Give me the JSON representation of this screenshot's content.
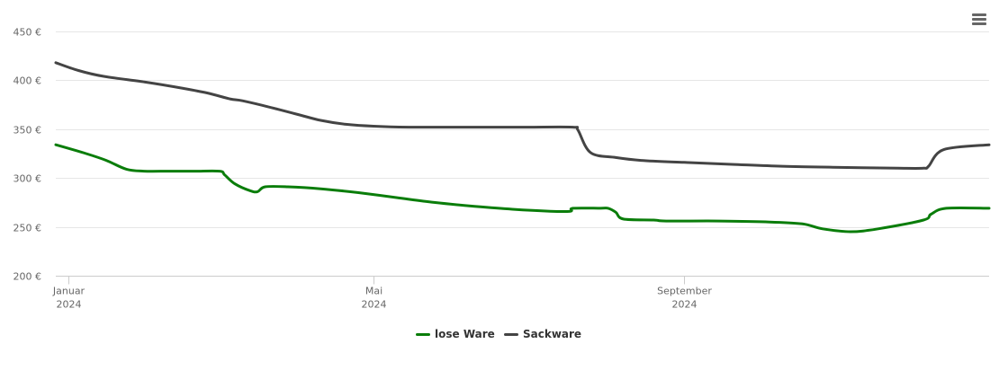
{
  "chart_data": {
    "type": "line",
    "title": "",
    "xlabel": "",
    "ylabel": "",
    "ylim": [
      200,
      450
    ],
    "y_ticks": [
      {
        "value": 200,
        "label": "200 €"
      },
      {
        "value": 250,
        "label": "250 €"
      },
      {
        "value": 300,
        "label": "300 €"
      },
      {
        "value": 350,
        "label": "350 €"
      },
      {
        "value": 400,
        "label": "400 €"
      },
      {
        "value": 450,
        "label": "450 €"
      }
    ],
    "xlim": [
      "2023-12-27",
      "2024-12-31"
    ],
    "x_ticks": [
      {
        "date": "2024-01-01",
        "label": "Januar",
        "year": "2024"
      },
      {
        "date": "2024-05-01",
        "label": "Mai",
        "year": "2024"
      },
      {
        "date": "2024-09-01",
        "label": "September",
        "year": "2024"
      }
    ],
    "grid": true,
    "legend_position": "bottom-center",
    "series": [
      {
        "name": "lose Ware",
        "color": "#0a7d0a",
        "points": [
          [
            "2023-12-27",
            334
          ],
          [
            "2024-01-08",
            325
          ],
          [
            "2024-01-16",
            318
          ],
          [
            "2024-01-24",
            309
          ],
          [
            "2024-01-31",
            307
          ],
          [
            "2024-02-10",
            307
          ],
          [
            "2024-02-20",
            307
          ],
          [
            "2024-03-01",
            307
          ],
          [
            "2024-03-03",
            303
          ],
          [
            "2024-03-07",
            294
          ],
          [
            "2024-03-13",
            287
          ],
          [
            "2024-03-16",
            286
          ],
          [
            "2024-03-19",
            291
          ],
          [
            "2024-03-28",
            291
          ],
          [
            "2024-04-10",
            289
          ],
          [
            "2024-04-25",
            285
          ],
          [
            "2024-05-10",
            280
          ],
          [
            "2024-05-25",
            275
          ],
          [
            "2024-06-10",
            271
          ],
          [
            "2024-06-25",
            268
          ],
          [
            "2024-07-10",
            266
          ],
          [
            "2024-07-18",
            266
          ],
          [
            "2024-07-19",
            269
          ],
          [
            "2024-07-30",
            269
          ],
          [
            "2024-08-02",
            269
          ],
          [
            "2024-08-05",
            265
          ],
          [
            "2024-08-08",
            258
          ],
          [
            "2024-08-20",
            257
          ],
          [
            "2024-08-25",
            256
          ],
          [
            "2024-09-15",
            256
          ],
          [
            "2024-10-05",
            255
          ],
          [
            "2024-10-18",
            253
          ],
          [
            "2024-10-26",
            248
          ],
          [
            "2024-11-06",
            245
          ],
          [
            "2024-11-17",
            248
          ],
          [
            "2024-12-05",
            257
          ],
          [
            "2024-12-08",
            263
          ],
          [
            "2024-12-14",
            269
          ],
          [
            "2024-12-31",
            269
          ]
        ]
      },
      {
        "name": "Sackware",
        "color": "#444444",
        "points": [
          [
            "2023-12-27",
            418
          ],
          [
            "2024-01-05",
            410
          ],
          [
            "2024-01-15",
            404
          ],
          [
            "2024-02-01",
            398
          ],
          [
            "2024-02-15",
            392
          ],
          [
            "2024-02-25",
            387
          ],
          [
            "2024-03-05",
            381
          ],
          [
            "2024-03-10",
            379
          ],
          [
            "2024-03-20",
            373
          ],
          [
            "2024-04-01",
            365
          ],
          [
            "2024-04-10",
            359
          ],
          [
            "2024-04-20",
            355
          ],
          [
            "2024-05-01",
            353
          ],
          [
            "2024-05-15",
            352
          ],
          [
            "2024-06-15",
            352
          ],
          [
            "2024-07-01",
            352
          ],
          [
            "2024-07-19",
            352
          ],
          [
            "2024-07-21",
            349
          ],
          [
            "2024-07-26",
            326
          ],
          [
            "2024-08-05",
            321
          ],
          [
            "2024-08-15",
            318
          ],
          [
            "2024-09-01",
            316
          ],
          [
            "2024-09-20",
            314
          ],
          [
            "2024-10-10",
            312
          ],
          [
            "2024-10-30",
            311
          ],
          [
            "2024-11-25",
            310
          ],
          [
            "2024-12-05",
            310
          ],
          [
            "2024-12-07",
            312
          ],
          [
            "2024-12-13",
            329
          ],
          [
            "2024-12-31",
            334
          ]
        ]
      }
    ]
  },
  "menu": {
    "icon": "hamburger-menu-icon"
  }
}
